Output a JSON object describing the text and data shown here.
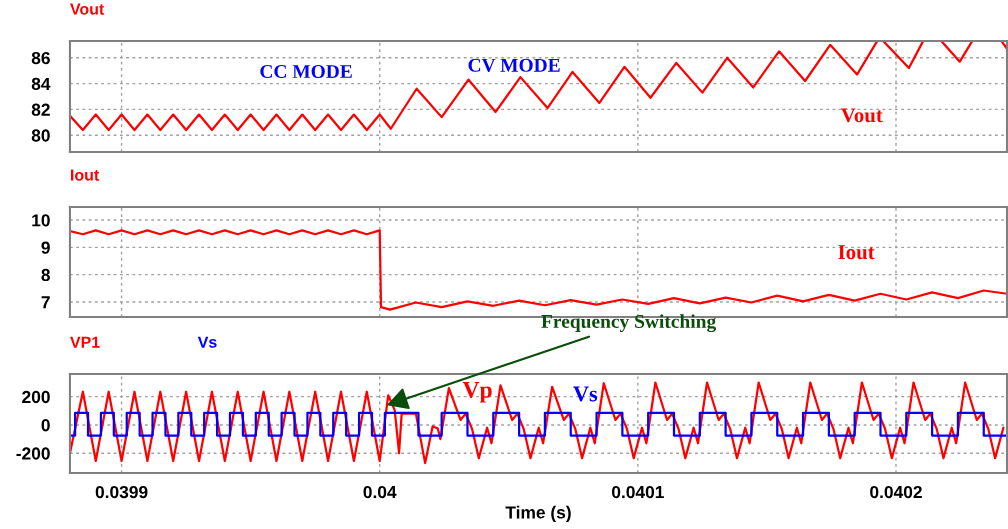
{
  "chart_data": [
    {
      "type": "line",
      "legend": "top left",
      "grid": true,
      "tick_labels": "y",
      "xlim": [
        0.03988,
        0.040243
      ],
      "xticks": [
        {
          "value": 0.0399,
          "label": null
        },
        {
          "value": 0.04,
          "label": null
        },
        {
          "value": 0.0401,
          "label": null
        },
        {
          "value": 0.0402,
          "label": null
        }
      ],
      "ylim": [
        78.7,
        87.3
      ],
      "yticks": [
        80,
        82,
        84,
        86
      ],
      "annotations": [
        "CC MODE",
        "CV MODE",
        "Vout"
      ],
      "series": [
        {
          "name": "Vout",
          "color": "#ff0000",
          "x": [
            0.03988,
            0.039885,
            0.03989,
            0.039895,
            0.0399,
            0.039905,
            0.03991,
            0.039915,
            0.03992,
            0.039925,
            0.03993,
            0.039935,
            0.03994,
            0.039945,
            0.03995,
            0.039955,
            0.03996,
            0.039965,
            0.03997,
            0.039975,
            0.03998,
            0.039985,
            0.03999,
            0.039995,
            0.04,
            0.0400043,
            0.0400143,
            0.040024,
            0.0400344,
            0.0400449,
            0.0400545,
            0.040065,
            0.0400747,
            0.0400851,
            0.0400948,
            0.0401049,
            0.0401149,
            0.040125,
            0.0401346,
            0.0401447,
            0.0401547,
            0.0401648,
            0.0401745,
            0.0401849,
            0.0401926,
            0.040194,
            0.0401953,
            0.040205,
            0.0402104,
            0.040213,
            0.0402178,
            0.0402247,
            0.0402294,
            0.04023,
            0.040241,
            0.040243
          ],
          "values": [
            81.5,
            80.4,
            81.6,
            80.4,
            81.6,
            80.4,
            81.6,
            80.4,
            81.6,
            80.4,
            81.6,
            80.4,
            81.6,
            80.4,
            81.6,
            80.4,
            81.6,
            80.4,
            81.6,
            80.4,
            81.6,
            80.4,
            81.6,
            80.4,
            81.6,
            80.5,
            83.6,
            81.4,
            84.3,
            81.8,
            84.5,
            82.1,
            84.9,
            82.5,
            85.3,
            82.9,
            85.6,
            83.3,
            86.0,
            83.7,
            86.5,
            84.2,
            87.0,
            84.7,
            87.25,
            null,
            87.25,
            85.2,
            87.25,
            null,
            87.25,
            85.7,
            87.25,
            null,
            87.25,
            86.7
          ]
        }
      ]
    },
    {
      "type": "line",
      "legend": "top left",
      "grid": true,
      "tick_labels": "y",
      "xlim": [
        0.03988,
        0.040243
      ],
      "xticks": [
        {
          "value": 0.0399,
          "label": null
        },
        {
          "value": 0.04,
          "label": null
        },
        {
          "value": 0.0401,
          "label": null
        },
        {
          "value": 0.0402,
          "label": null
        }
      ],
      "ylim": [
        6.45,
        10.48
      ],
      "yticks": [
        7,
        8,
        9,
        10
      ],
      "annotations": [
        "Iout"
      ],
      "series": [
        {
          "name": "Iout",
          "color": "#ff0000",
          "x": [
            0.03988,
            0.039885,
            0.03989,
            0.039895,
            0.0399,
            0.039905,
            0.03991,
            0.039915,
            0.03992,
            0.039925,
            0.03993,
            0.039935,
            0.03994,
            0.039945,
            0.03995,
            0.039955,
            0.03996,
            0.039965,
            0.03997,
            0.039975,
            0.03998,
            0.039985,
            0.03999,
            0.039995,
            0.04,
            0.0400005,
            0.040004,
            0.040014,
            0.040024,
            0.040034,
            0.040044,
            0.040054,
            0.040064,
            0.040074,
            0.040084,
            0.040094,
            0.040104,
            0.040114,
            0.040124,
            0.040134,
            0.040144,
            0.040154,
            0.040164,
            0.040174,
            0.040184,
            0.040194,
            0.040204,
            0.040214,
            0.040224,
            0.040234,
            0.040243
          ],
          "values": [
            9.6,
            9.48,
            9.62,
            9.48,
            9.62,
            9.48,
            9.62,
            9.48,
            9.62,
            9.48,
            9.62,
            9.48,
            9.62,
            9.48,
            9.62,
            9.48,
            9.62,
            9.48,
            9.62,
            9.48,
            9.62,
            9.48,
            9.62,
            9.48,
            9.62,
            6.81,
            6.72,
            6.98,
            6.81,
            7.02,
            6.86,
            7.05,
            6.88,
            7.07,
            6.9,
            7.09,
            6.93,
            7.14,
            6.95,
            7.16,
            6.98,
            7.23,
            7.02,
            7.26,
            7.05,
            7.3,
            7.09,
            7.35,
            7.14,
            7.42,
            7.3
          ]
        }
      ]
    },
    {
      "type": "line",
      "legend": "top left",
      "grid": true,
      "xlabel": "Time (s)",
      "xlim": [
        0.03988,
        0.040243
      ],
      "xticks": [
        0.0399,
        0.04,
        0.0401,
        0.0402
      ],
      "ylim": [
        -340,
        360
      ],
      "yticks": [
        -200,
        0,
        200
      ],
      "annotations": [
        "Vp",
        "Vs",
        {
          "text": "Frequency Switching",
          "x": 0.0400028,
          "y": 140
        }
      ],
      "series": [
        {
          "name": "VP1",
          "color": "#ff0000",
          "x": [
            0.03988,
            0.039885,
            0.03989,
            0.039895,
            0.0399,
            0.039905,
            0.03991,
            0.039915,
            0.03992,
            0.039925,
            0.03993,
            0.039935,
            0.03994,
            0.039945,
            0.03995,
            0.039955,
            0.03996,
            0.039965,
            0.03997,
            0.039975,
            0.03998,
            0.039985,
            0.03999,
            0.039995,
            0.04,
            0.0400033,
            0.0400058,
            0.0400075,
            0.0400085,
            0.040014,
            0.0400176,
            0.0400205,
            0.0400225,
            0.0400235,
            0.0400268,
            0.0400313,
            0.0400333,
            0.0400358,
            0.0400384,
            0.0400416,
            0.0400433,
            0.0400468,
            0.0400513,
            0.0400533,
            0.0400558,
            0.0400584,
            0.0400616,
            0.0400633,
            0.0400668,
            0.0400713,
            0.0400733,
            0.0400758,
            0.0400784,
            0.0400816,
            0.0400833,
            0.0400868,
            0.0400913,
            0.0400933,
            0.0400958,
            0.0400984,
            0.0401016,
            0.0401033,
            0.0401068,
            0.0401113,
            0.0401133,
            0.0401158,
            0.0401184,
            0.0401216,
            0.0401233,
            0.0401268,
            0.0401313,
            0.0401333,
            0.0401358,
            0.0401384,
            0.0401416,
            0.0401433,
            0.0401468,
            0.0401513,
            0.0401533,
            0.0401558,
            0.0401584,
            0.0401616,
            0.0401633,
            0.0401668,
            0.0401713,
            0.0401733,
            0.0401758,
            0.0401784,
            0.0401816,
            0.0401833,
            0.0401868,
            0.0401913,
            0.0401933,
            0.0401958,
            0.0401984,
            0.0402016,
            0.0402033,
            0.0402068,
            0.0402113,
            0.0402133,
            0.0402158,
            0.0402184,
            0.0402216,
            0.0402233,
            0.0402268,
            0.0402313,
            0.0402333,
            0.0402358,
            0.0402384,
            0.0402416
          ],
          "values": [
            -200,
            235,
            -255,
            235,
            -255,
            235,
            -255,
            235,
            -255,
            235,
            -255,
            235,
            -255,
            235,
            -255,
            235,
            -255,
            235,
            -255,
            235,
            -255,
            235,
            -255,
            235,
            -255,
            210,
            105,
            -200,
            80,
            80,
            -270,
            -10,
            -25,
            -100,
            260,
            35,
            80,
            -30,
            -235,
            -20,
            -130,
            280,
            35,
            80,
            -30,
            -235,
            -20,
            -130,
            270,
            35,
            80,
            -30,
            -235,
            -20,
            -130,
            295,
            35,
            80,
            -30,
            -235,
            -20,
            -130,
            300,
            35,
            80,
            -30,
            -235,
            -20,
            -130,
            300,
            35,
            80,
            -30,
            -235,
            -20,
            -130,
            300,
            35,
            80,
            -30,
            -235,
            -20,
            -130,
            300,
            35,
            80,
            -30,
            -235,
            -20,
            -130,
            300,
            35,
            80,
            -30,
            -235,
            -20,
            -130,
            300,
            35,
            80,
            -30,
            -235,
            -20,
            -130,
            300,
            35,
            80,
            -30,
            -235,
            -20
          ]
        },
        {
          "name": "Vs",
          "color": "#0000ff",
          "type": "step",
          "x": [
            0.03988,
            0.039882,
            0.039887,
            0.039892,
            0.039897,
            0.039902,
            0.039907,
            0.039912,
            0.039917,
            0.039922,
            0.039927,
            0.039932,
            0.039937,
            0.039942,
            0.039947,
            0.039952,
            0.039957,
            0.039962,
            0.039967,
            0.039972,
            0.039977,
            0.039982,
            0.039987,
            0.039992,
            0.039997,
            0.040002,
            0.040015,
            0.040024,
            0.040034,
            0.040044,
            0.040054,
            0.040064,
            0.040074,
            0.040084,
            0.040094,
            0.040104,
            0.040114,
            0.040124,
            0.040134,
            0.040144,
            0.040154,
            0.040164,
            0.040174,
            0.040184,
            0.040194,
            0.040204,
            0.040214,
            0.040224,
            0.040234,
            0.040243
          ],
          "values": [
            -75,
            85,
            -75,
            85,
            -75,
            85,
            -75,
            85,
            -75,
            85,
            -75,
            85,
            -75,
            85,
            -75,
            85,
            -75,
            85,
            -75,
            85,
            -75,
            85,
            -75,
            85,
            -75,
            85,
            -75,
            85,
            -75,
            85,
            -75,
            85,
            -75,
            85,
            -75,
            85,
            -75,
            85,
            -75,
            85,
            -75,
            85,
            -75,
            85,
            -75,
            85,
            -75,
            85,
            -75,
            -75
          ]
        }
      ]
    }
  ]
}
